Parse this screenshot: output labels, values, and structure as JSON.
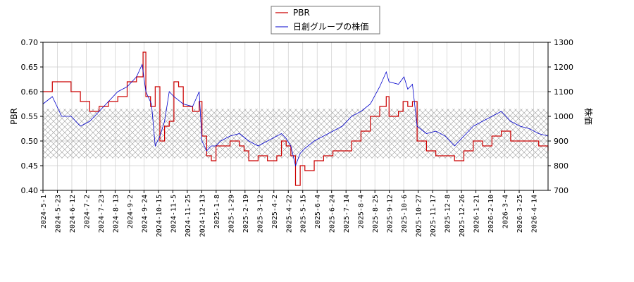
{
  "chart_data": {
    "type": "line",
    "title": "",
    "legend": {
      "position": "top-center",
      "entries": [
        "PBR",
        "日創グループの株価"
      ]
    },
    "y_left": {
      "label": "PBR",
      "ylim": [
        0.4,
        0.7
      ],
      "ticks": [
        "0.40",
        "0.45",
        "0.50",
        "0.55",
        "0.60",
        "0.65",
        "0.70"
      ]
    },
    "y_right": {
      "label": "株価",
      "ylim": [
        700,
        1300
      ],
      "ticks": [
        "700",
        "800",
        "900",
        "1000",
        "1100",
        "1200",
        "1300"
      ]
    },
    "x_tick_labels": [
      "2024-5-1",
      "2024-5-23",
      "2024-6-12",
      "2024-7-2",
      "2024-7-23",
      "2024-8-13",
      "2024-9-2",
      "2024-9-24",
      "2024-10-15",
      "2024-11-5",
      "2024-11-25",
      "2024-12-13",
      "2025-1-8",
      "2025-1-29",
      "2025-2-19",
      "2025-3-12",
      "2025-4-2",
      "2025-4-22",
      "2025-5-15",
      "2025-6-4",
      "2025-6-24",
      "2025-7-14",
      "2025-8-4",
      "2025-8-25",
      "2025-9-12",
      "2025-10-6",
      "2025-10-27",
      "2025-11-17",
      "2025-12-8",
      "2025-12-26",
      "2026-1-21",
      "2026-2-10",
      "2026-3-4",
      "2026-3-25",
      "2026-4-14"
    ],
    "grid": true,
    "band": {
      "axis": "left",
      "from": 0.465,
      "to": 0.565,
      "pattern": "crosshatch"
    },
    "series": [
      {
        "name": "PBR",
        "axis": "left",
        "color": "#cc0000",
        "values": [
          [
            0,
            0.6
          ],
          [
            1,
            0.62
          ],
          [
            3,
            0.6
          ],
          [
            4,
            0.58
          ],
          [
            5,
            0.56
          ],
          [
            6,
            0.57
          ],
          [
            7,
            0.58
          ],
          [
            8,
            0.59
          ],
          [
            9,
            0.62
          ],
          [
            10,
            0.63
          ],
          [
            10.7,
            0.68
          ],
          [
            11,
            0.59
          ],
          [
            11.5,
            0.57
          ],
          [
            12,
            0.61
          ],
          [
            12.5,
            0.5
          ],
          [
            13,
            0.53
          ],
          [
            13.5,
            0.54
          ],
          [
            14,
            0.62
          ],
          [
            14.5,
            0.61
          ],
          [
            15,
            0.57
          ],
          [
            16,
            0.56
          ],
          [
            16.7,
            0.58
          ],
          [
            17,
            0.51
          ],
          [
            17.5,
            0.47
          ],
          [
            18,
            0.46
          ],
          [
            18.5,
            0.49
          ],
          [
            20,
            0.5
          ],
          [
            21,
            0.49
          ],
          [
            21.5,
            0.48
          ],
          [
            22,
            0.46
          ],
          [
            23,
            0.47
          ],
          [
            24,
            0.46
          ],
          [
            25,
            0.47
          ],
          [
            25.5,
            0.5
          ],
          [
            26,
            0.49
          ],
          [
            26.5,
            0.47
          ],
          [
            27,
            0.41
          ],
          [
            27.5,
            0.45
          ],
          [
            28,
            0.44
          ],
          [
            29,
            0.46
          ],
          [
            30,
            0.47
          ],
          [
            31,
            0.48
          ],
          [
            32,
            0.48
          ],
          [
            33,
            0.5
          ],
          [
            34,
            0.52
          ],
          [
            35,
            0.55
          ],
          [
            36,
            0.57
          ],
          [
            36.7,
            0.59
          ],
          [
            37,
            0.55
          ],
          [
            38,
            0.56
          ],
          [
            38.5,
            0.58
          ],
          [
            39,
            0.57
          ],
          [
            39.5,
            0.58
          ],
          [
            40,
            0.5
          ],
          [
            41,
            0.48
          ],
          [
            42,
            0.47
          ],
          [
            43,
            0.47
          ],
          [
            44,
            0.46
          ],
          [
            45,
            0.48
          ],
          [
            46,
            0.5
          ],
          [
            47,
            0.49
          ],
          [
            48,
            0.51
          ],
          [
            49,
            0.52
          ],
          [
            50,
            0.5
          ],
          [
            51,
            0.5
          ],
          [
            52,
            0.5
          ],
          [
            53,
            0.49
          ],
          [
            54,
            0.48
          ]
        ]
      },
      {
        "name": "日創グループの株価",
        "axis": "right",
        "color": "#0000cc",
        "values": [
          [
            0,
            1050
          ],
          [
            1,
            1080
          ],
          [
            2,
            1000
          ],
          [
            3,
            1000
          ],
          [
            4,
            960
          ],
          [
            5,
            980
          ],
          [
            6,
            1020
          ],
          [
            7,
            1060
          ],
          [
            8,
            1100
          ],
          [
            9,
            1120
          ],
          [
            10,
            1160
          ],
          [
            10.6,
            1210
          ],
          [
            11,
            1100
          ],
          [
            11.6,
            1050
          ],
          [
            12,
            880
          ],
          [
            12.5,
            920
          ],
          [
            13,
            980
          ],
          [
            13.5,
            1100
          ],
          [
            14,
            1080
          ],
          [
            15,
            1050
          ],
          [
            16,
            1040
          ],
          [
            16.7,
            1100
          ],
          [
            17,
            900
          ],
          [
            17.5,
            860
          ],
          [
            18,
            880
          ],
          [
            18.5,
            880
          ],
          [
            19,
            900
          ],
          [
            20,
            920
          ],
          [
            21,
            930
          ],
          [
            22,
            900
          ],
          [
            23,
            880
          ],
          [
            24,
            900
          ],
          [
            25,
            920
          ],
          [
            25.5,
            930
          ],
          [
            26,
            910
          ],
          [
            26.5,
            880
          ],
          [
            27,
            800
          ],
          [
            27.5,
            850
          ],
          [
            28,
            870
          ],
          [
            29,
            900
          ],
          [
            30,
            920
          ],
          [
            31,
            940
          ],
          [
            32,
            960
          ],
          [
            33,
            1000
          ],
          [
            34,
            1020
          ],
          [
            35,
            1050
          ],
          [
            36,
            1120
          ],
          [
            36.7,
            1180
          ],
          [
            37,
            1140
          ],
          [
            38,
            1130
          ],
          [
            38.6,
            1160
          ],
          [
            39,
            1110
          ],
          [
            39.5,
            1130
          ],
          [
            40,
            960
          ],
          [
            41,
            930
          ],
          [
            42,
            940
          ],
          [
            43,
            920
          ],
          [
            44,
            880
          ],
          [
            45,
            920
          ],
          [
            46,
            960
          ],
          [
            47,
            980
          ],
          [
            48,
            1000
          ],
          [
            49,
            1020
          ],
          [
            50,
            980
          ],
          [
            51,
            960
          ],
          [
            52,
            950
          ],
          [
            53,
            930
          ],
          [
            54,
            920
          ]
        ]
      }
    ]
  }
}
